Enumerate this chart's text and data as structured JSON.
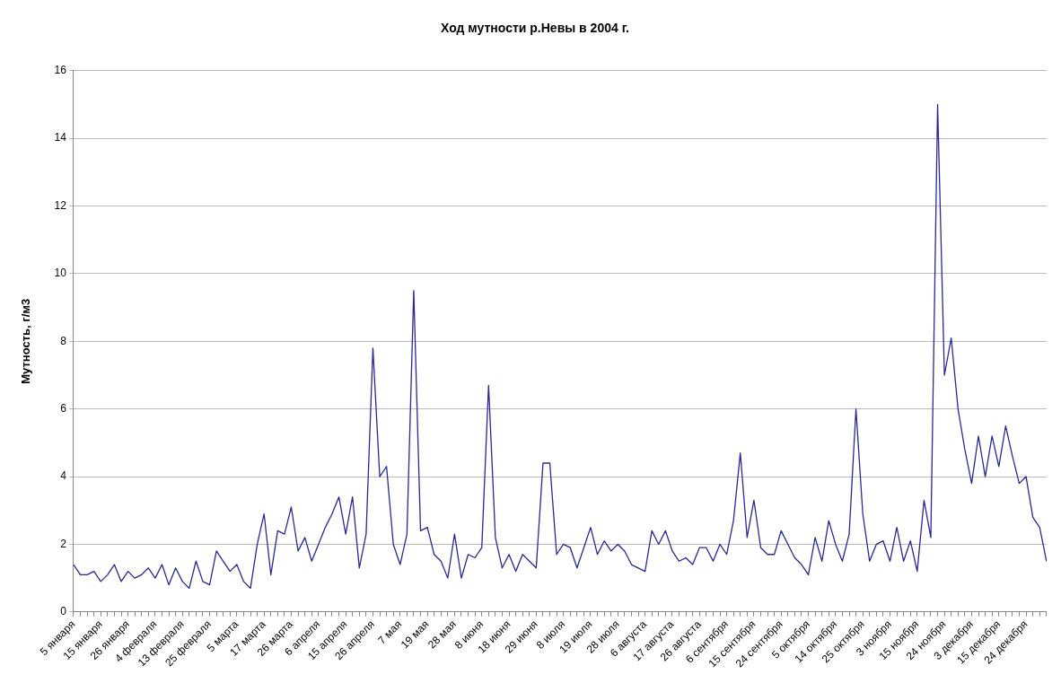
{
  "chart_data": {
    "type": "line",
    "title": "Ход мутности р.Невы в 2004 г.",
    "ylabel": "Мутность, г/м3",
    "categories": [
      "5 января",
      null,
      null,
      null,
      "15 января",
      null,
      null,
      null,
      "26 января",
      null,
      null,
      null,
      "4 февраля",
      null,
      null,
      null,
      "13 февраля",
      null,
      null,
      null,
      "25 февраля",
      null,
      null,
      null,
      "5 марта",
      null,
      null,
      null,
      "17 марта",
      null,
      null,
      null,
      "26 марта",
      null,
      null,
      null,
      "6 апреля",
      null,
      null,
      null,
      "15 апреля",
      null,
      null,
      null,
      "26 апреля",
      null,
      null,
      null,
      "7 мая",
      null,
      null,
      null,
      "19 мая",
      null,
      null,
      null,
      "28 мая",
      null,
      null,
      null,
      "8 июня",
      null,
      null,
      null,
      "18 июня",
      null,
      null,
      null,
      "29 июня",
      null,
      null,
      null,
      "8 июля",
      null,
      null,
      null,
      "19 июля",
      null,
      null,
      null,
      "28 июля",
      null,
      null,
      null,
      "6 августа",
      null,
      null,
      null,
      "17 августа",
      null,
      null,
      null,
      "26 августа",
      null,
      null,
      null,
      "6 сентября",
      null,
      null,
      null,
      "15 сентября",
      null,
      null,
      null,
      "24 сентября",
      null,
      null,
      null,
      "5 октября",
      null,
      null,
      null,
      "14 октября",
      null,
      null,
      null,
      "25 октября",
      null,
      null,
      null,
      "3 ноября",
      null,
      null,
      null,
      "15 ноября",
      null,
      null,
      null,
      "24 ноября",
      null,
      null,
      null,
      "3 декабря",
      null,
      null,
      null,
      "15 декабря",
      null,
      null,
      null,
      "24 декабря",
      null,
      null,
      null
    ],
    "series": [
      {
        "color": "#28289a",
        "values": [
          1.4,
          1.1,
          1.1,
          1.2,
          0.9,
          1.1,
          1.4,
          0.9,
          1.2,
          1.0,
          1.1,
          1.3,
          1.0,
          1.4,
          0.8,
          1.3,
          0.9,
          0.7,
          1.5,
          0.9,
          0.8,
          1.8,
          1.5,
          1.2,
          1.4,
          0.9,
          0.7,
          2.0,
          2.9,
          1.1,
          2.4,
          2.3,
          3.1,
          1.8,
          2.2,
          1.5,
          2.0,
          2.5,
          2.9,
          3.4,
          2.3,
          3.4,
          1.3,
          2.3,
          7.8,
          4.0,
          4.3,
          2.0,
          1.4,
          2.3,
          9.5,
          2.4,
          2.5,
          1.7,
          1.5,
          1.0,
          2.3,
          1.0,
          1.7,
          1.6,
          1.9,
          6.7,
          2.2,
          1.3,
          1.7,
          1.2,
          1.7,
          1.5,
          1.3,
          4.4,
          4.4,
          1.7,
          2.0,
          1.9,
          1.3,
          1.9,
          2.5,
          1.7,
          2.1,
          1.8,
          2.0,
          1.8,
          1.4,
          1.3,
          1.2,
          2.4,
          2.0,
          2.4,
          1.8,
          1.5,
          1.6,
          1.4,
          1.9,
          1.9,
          1.5,
          2.0,
          1.7,
          2.7,
          4.7,
          2.2,
          3.3,
          1.9,
          1.7,
          1.7,
          2.4,
          2.0,
          1.6,
          1.4,
          1.1,
          2.2,
          1.5,
          2.7,
          2.0,
          1.5,
          2.3,
          6.0,
          2.9,
          1.5,
          2.0,
          2.1,
          1.5,
          2.5,
          1.5,
          2.1,
          1.2,
          3.3,
          2.2,
          15.0,
          7.0,
          8.1,
          6.0,
          4.8,
          3.8,
          5.2,
          4.0,
          5.2,
          4.3,
          5.5,
          4.6,
          3.8,
          4.0,
          2.8,
          2.5,
          1.5
        ]
      }
    ],
    "ylim": [
      0,
      16
    ],
    "yticks": [
      0,
      2,
      4,
      6,
      8,
      10,
      12,
      14,
      16
    ],
    "grid": "y",
    "legend": false,
    "marker": "none",
    "line_style": "solid"
  }
}
